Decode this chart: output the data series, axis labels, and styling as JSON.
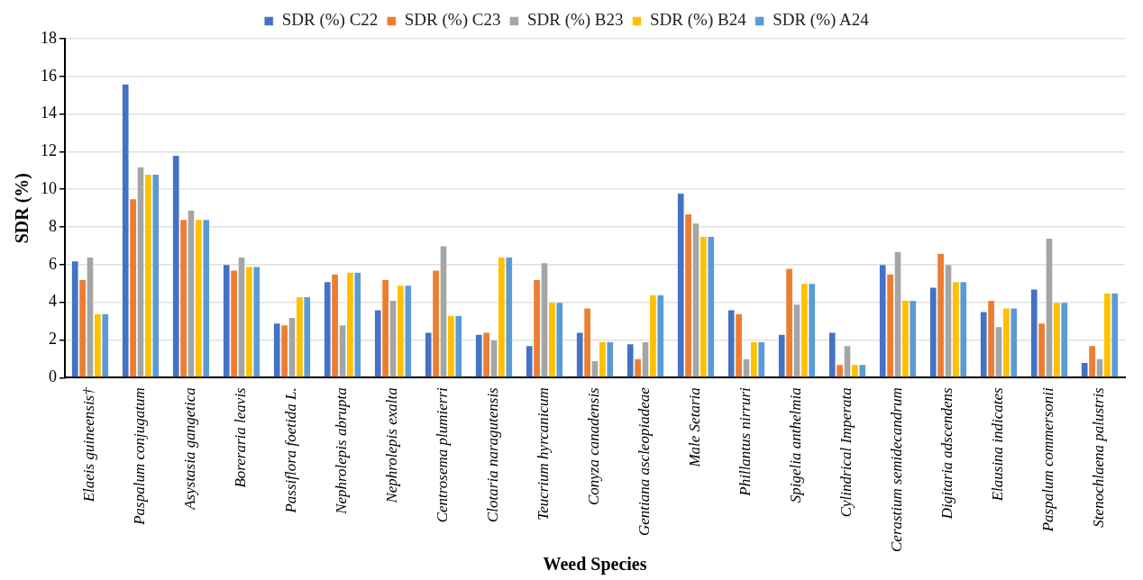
{
  "chart_data": {
    "type": "bar",
    "xlabel": "Weed Species",
    "ylabel": "SDR (%)",
    "categories": [
      "Elaeis guineensis†",
      "Paspalum conjugatum",
      "Asystasia gangetica",
      "Boreraria leavis",
      "Passiflora foetida L.",
      "Nephrolepis abrupta",
      "Nephrolepis exalta",
      "Centrosema plumierri",
      "Clotaria naragutensis",
      "Teucrium hyrcanicum",
      "Conyza canadensis",
      "Gentiana ascleopiadeae",
      "Male Setaria",
      "Phillantus nirruri",
      "Spigelia anthelmia",
      "Cylindrical Imperata",
      "Cerastium semidecandrum",
      "Digitaria adscendens",
      "Elausina indicates",
      "Paspalum commersonii",
      "Stenochlaena palustris"
    ],
    "series": [
      {
        "name": "SDR (%) C22",
        "color": "#4472c4",
        "values": [
          6.2,
          15.6,
          11.8,
          6.0,
          2.9,
          5.1,
          3.6,
          2.4,
          2.3,
          1.7,
          2.4,
          1.8,
          9.8,
          3.6,
          2.3,
          2.4,
          6.0,
          4.8,
          3.5,
          4.7,
          0.8
        ]
      },
      {
        "name": "SDR (%) C23",
        "color": "#ed7d31",
        "values": [
          5.2,
          9.5,
          8.4,
          5.7,
          2.8,
          5.5,
          5.2,
          5.7,
          2.4,
          5.2,
          3.7,
          1.0,
          8.7,
          3.4,
          5.8,
          0.7,
          5.5,
          6.6,
          4.1,
          2.9,
          1.7
        ]
      },
      {
        "name": "SDR (%) B23",
        "color": "#a5a5a5",
        "values": [
          6.4,
          11.2,
          8.9,
          6.4,
          3.2,
          2.8,
          4.1,
          7.0,
          2.0,
          6.1,
          0.9,
          1.9,
          8.2,
          1.0,
          3.9,
          1.7,
          6.7,
          6.0,
          2.7,
          7.4,
          1.0
        ]
      },
      {
        "name": "SDR (%) B24",
        "color": "#ffc000",
        "values": [
          3.4,
          10.8,
          8.4,
          5.9,
          4.3,
          5.6,
          4.9,
          3.3,
          6.4,
          4.0,
          1.9,
          4.4,
          7.5,
          1.9,
          5.0,
          0.7,
          4.1,
          5.1,
          3.7,
          4.0,
          4.5
        ]
      },
      {
        "name": "SDR (%) A24",
        "color": "#5b9bd5",
        "values": [
          3.4,
          10.8,
          8.4,
          5.9,
          4.3,
          5.6,
          4.9,
          3.3,
          6.4,
          4.0,
          1.9,
          4.4,
          7.5,
          1.9,
          5.0,
          0.7,
          4.1,
          5.1,
          3.7,
          4.0,
          4.5
        ]
      }
    ],
    "ylim": [
      0,
      18
    ],
    "yticks": [
      0,
      2,
      4,
      6,
      8,
      10,
      12,
      14,
      16,
      18
    ],
    "grid": "y",
    "legend": "top"
  }
}
